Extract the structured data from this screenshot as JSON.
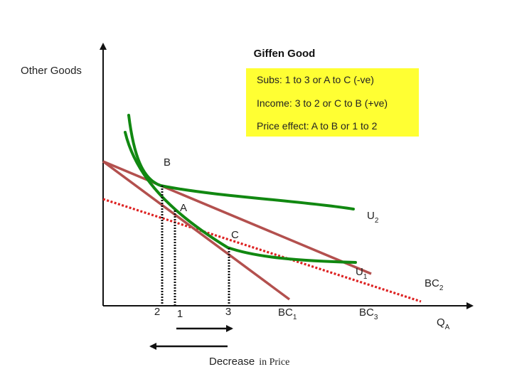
{
  "title": "Giffen Good",
  "y_axis_label": "Other Goods",
  "x_axis_label": {
    "main": "Q",
    "sub": "A"
  },
  "legend_box": {
    "background": "#ffff33",
    "lines": [
      "Subs: 1 to 3  or A to C (-ve)",
      "Income: 3 to 2 or C to B (+ve)",
      "Price effect: A to B or 1 to 2"
    ]
  },
  "points": {
    "a": "A",
    "b": "B",
    "c": "C"
  },
  "curves": {
    "u1": {
      "main": "U",
      "sub": "1"
    },
    "u2": {
      "main": "U",
      "sub": "2"
    }
  },
  "budget_lines": {
    "bc1": {
      "main": "BC",
      "sub": "1"
    },
    "bc2": {
      "main": "BC",
      "sub": "2"
    },
    "bc3": {
      "main": "BC",
      "sub": "3"
    }
  },
  "x_ticks": {
    "t1": "1",
    "t2": "2",
    "t3": "3"
  },
  "caption": {
    "word1": "Decrease",
    "word2": "in Price"
  },
  "colors": {
    "indifference_curve": "#118811",
    "budget_line": "#b3504e",
    "compensated_budget_line": "#dd2222",
    "axes": "#111111",
    "drop_lines": "#111111"
  }
}
